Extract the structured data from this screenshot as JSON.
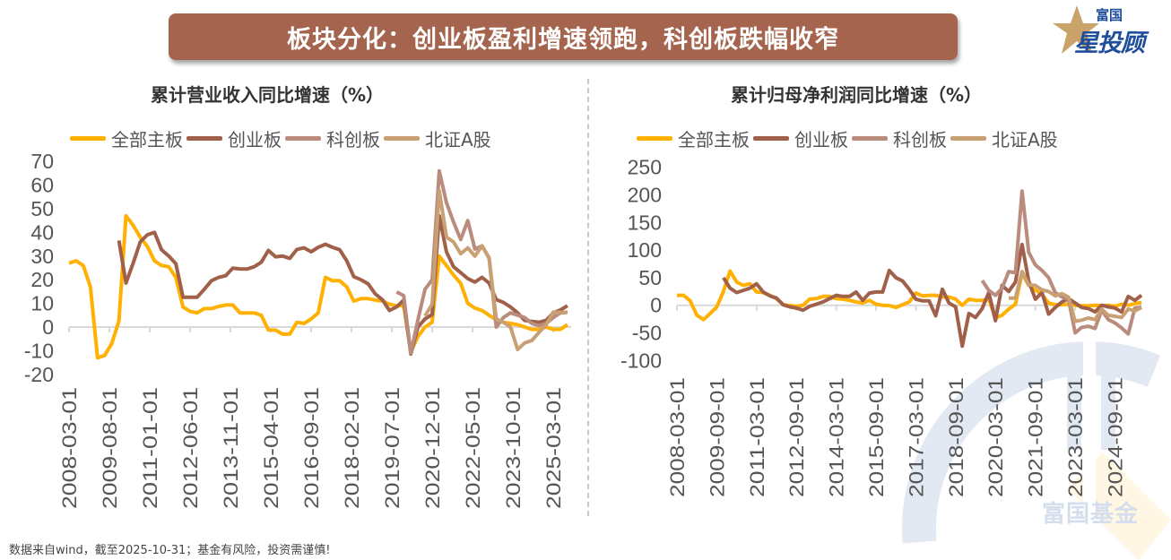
{
  "header": {
    "title": "板块分化：创业板盈利增速领跑，科创板跌幅收窄",
    "banner_color": "#A5644E",
    "logo": {
      "small": "富国",
      "big": "星投顾",
      "icon": "star-icon"
    }
  },
  "watermark": "富国基金",
  "footer": "数据来自wind，截至2025-10-31；基金有风险，投资需谨慎!",
  "chart_data": [
    {
      "type": "line",
      "title": "累计营业收入同比增速（%）",
      "legend_position": "top",
      "grid": false,
      "ylim": [
        -20,
        70
      ],
      "yticks": [
        "-20",
        "-10",
        "0",
        "10",
        "20",
        "30",
        "40",
        "50",
        "60",
        "70"
      ],
      "xticks": [
        "2008-03-01",
        "2009-08-01",
        "2011-01-01",
        "2012-06-01",
        "2013-11-01",
        "2015-04-01",
        "2016-09-01",
        "2018-02-01",
        "2019-07-01",
        "2020-12-01",
        "2022-05-01",
        "2023-10-01",
        "2025-03-01"
      ],
      "x": [
        "2008-03-01",
        "2008-06-01",
        "2008-09-01",
        "2008-12-01",
        "2009-03-01",
        "2009-06-01",
        "2009-09-01",
        "2009-12-01",
        "2010-03-01",
        "2010-06-01",
        "2010-09-01",
        "2010-12-01",
        "2011-03-01",
        "2011-06-01",
        "2011-09-01",
        "2011-12-01",
        "2012-03-01",
        "2012-06-01",
        "2012-09-01",
        "2012-12-01",
        "2013-03-01",
        "2013-06-01",
        "2013-09-01",
        "2013-12-01",
        "2014-03-01",
        "2014-06-01",
        "2014-09-01",
        "2014-12-01",
        "2015-03-01",
        "2015-06-01",
        "2015-09-01",
        "2015-12-01",
        "2016-03-01",
        "2016-06-01",
        "2016-09-01",
        "2016-12-01",
        "2017-03-01",
        "2017-06-01",
        "2017-09-01",
        "2017-12-01",
        "2018-03-01",
        "2018-06-01",
        "2018-09-01",
        "2018-12-01",
        "2019-03-01",
        "2019-06-01",
        "2019-09-01",
        "2019-12-01",
        "2020-03-01",
        "2020-06-01",
        "2020-09-01",
        "2020-12-01",
        "2021-03-01",
        "2021-06-01",
        "2021-09-01",
        "2021-12-01",
        "2022-03-01",
        "2022-06-01",
        "2022-09-01",
        "2022-12-01",
        "2023-03-01",
        "2023-06-01",
        "2023-09-01",
        "2023-12-01",
        "2024-03-01",
        "2024-06-01",
        "2024-09-01",
        "2024-12-01",
        "2025-03-01",
        "2025-06-01",
        "2025-09-01"
      ],
      "series": [
        {
          "name": "全部主板",
          "color": "#FFB000",
          "values": [
            27,
            28,
            26,
            17,
            -13,
            -12,
            -7,
            2.5,
            47,
            43,
            38,
            34,
            28,
            26,
            25.5,
            21,
            8.5,
            6.6,
            6,
            7.8,
            7.8,
            8.7,
            9.3,
            9.3,
            6,
            6,
            6,
            5,
            -1.3,
            -1.3,
            -3,
            -3,
            2,
            1.5,
            3.4,
            6,
            21,
            19.6,
            19.6,
            17,
            11,
            12,
            12,
            11.4,
            11,
            9.7,
            9,
            9,
            -10.5,
            -4,
            0,
            2,
            30,
            26,
            22,
            18.5,
            10,
            8,
            7,
            5,
            3,
            2,
            1.5,
            1,
            0,
            -1,
            -1,
            0,
            -1,
            -1,
            1
          ]
        },
        {
          "name": "创业板",
          "color": "#A0604A",
          "values": [
            null,
            null,
            null,
            null,
            null,
            null,
            null,
            36.6,
            18.6,
            27,
            36,
            39,
            40,
            32.7,
            30,
            26.8,
            12.6,
            12.6,
            12.6,
            16,
            19.6,
            21,
            21.7,
            24.9,
            24.6,
            24.5,
            25.5,
            27.4,
            32.4,
            29.7,
            30,
            29,
            32.8,
            33.5,
            31.8,
            33.7,
            35,
            33.7,
            32.7,
            28,
            21.3,
            20,
            18.3,
            14,
            11.6,
            7,
            8.5,
            11.4,
            -11.4,
            0,
            3.4,
            5.3,
            47,
            31.8,
            25.5,
            23,
            20.5,
            19,
            21,
            18.6,
            11.6,
            10.4,
            8.5,
            6,
            2.8,
            2.4,
            2,
            2.8,
            6,
            7.2,
            9
          ]
        },
        {
          "name": "科创板",
          "color": "#B98C7E",
          "values": [
            null,
            null,
            null,
            null,
            null,
            null,
            null,
            null,
            null,
            null,
            null,
            null,
            null,
            null,
            null,
            null,
            null,
            null,
            null,
            null,
            null,
            null,
            null,
            null,
            null,
            null,
            null,
            null,
            null,
            null,
            null,
            null,
            null,
            null,
            null,
            null,
            null,
            null,
            null,
            null,
            null,
            null,
            null,
            null,
            null,
            null,
            14.8,
            13.3,
            -11,
            3,
            16,
            20,
            66,
            52.6,
            44.4,
            37,
            45,
            33,
            34.3,
            29.3,
            0,
            4,
            6,
            5,
            4,
            1.5,
            0.6,
            1.5,
            4,
            6,
            6.2
          ]
        },
        {
          "name": "北证A股",
          "color": "#C9A074",
          "values": [
            null,
            null,
            null,
            null,
            null,
            null,
            null,
            null,
            null,
            null,
            null,
            null,
            null,
            null,
            null,
            null,
            null,
            null,
            null,
            null,
            null,
            null,
            null,
            null,
            null,
            null,
            null,
            null,
            null,
            null,
            null,
            null,
            null,
            null,
            null,
            null,
            null,
            null,
            null,
            null,
            null,
            null,
            null,
            null,
            null,
            null,
            null,
            null,
            null,
            null,
            4.7,
            9.7,
            57.7,
            38,
            36,
            31,
            33.5,
            30,
            34.3,
            29,
            3.4,
            2,
            0,
            -9.5,
            -6.7,
            -5.7,
            -2.3,
            1,
            6.3,
            6.2,
            6.3
          ]
        }
      ]
    },
    {
      "type": "line",
      "title": "累计归母净利润同比增速（%）",
      "legend_position": "top",
      "grid": false,
      "ylim": [
        -100,
        250
      ],
      "yticks": [
        "-100",
        "-50",
        "0",
        "50",
        "100",
        "150",
        "200",
        "250"
      ],
      "xticks": [
        "2008-03-01",
        "2009-09-01",
        "2011-03-01",
        "2012-09-01",
        "2014-03-01",
        "2015-09-01",
        "2017-03-01",
        "2018-09-01",
        "2020-03-01",
        "2021-09-01",
        "2023-03-01",
        "2024-09-01"
      ],
      "x": [
        "2008-03-01",
        "2008-06-01",
        "2008-09-01",
        "2008-12-01",
        "2009-03-01",
        "2009-06-01",
        "2009-09-01",
        "2009-12-01",
        "2010-03-01",
        "2010-06-01",
        "2010-09-01",
        "2010-12-01",
        "2011-03-01",
        "2011-06-01",
        "2011-09-01",
        "2011-12-01",
        "2012-03-01",
        "2012-06-01",
        "2012-09-01",
        "2012-12-01",
        "2013-03-01",
        "2013-06-01",
        "2013-09-01",
        "2013-12-01",
        "2014-03-01",
        "2014-06-01",
        "2014-09-01",
        "2014-12-01",
        "2015-03-01",
        "2015-06-01",
        "2015-09-01",
        "2015-12-01",
        "2016-03-01",
        "2016-06-01",
        "2016-09-01",
        "2016-12-01",
        "2017-03-01",
        "2017-06-01",
        "2017-09-01",
        "2017-12-01",
        "2018-03-01",
        "2018-06-01",
        "2018-09-01",
        "2018-12-01",
        "2019-03-01",
        "2019-06-01",
        "2019-09-01",
        "2019-12-01",
        "2020-03-01",
        "2020-06-01",
        "2020-09-01",
        "2020-12-01",
        "2021-03-01",
        "2021-06-01",
        "2021-09-01",
        "2021-12-01",
        "2022-03-01",
        "2022-06-01",
        "2022-09-01",
        "2022-12-01",
        "2023-03-01",
        "2023-06-01",
        "2023-09-01",
        "2023-12-01",
        "2024-03-01",
        "2024-06-01",
        "2024-09-01",
        "2024-12-01",
        "2025-03-01",
        "2025-06-01",
        "2025-09-01"
      ],
      "series": [
        {
          "name": "全部主板",
          "color": "#FFB000",
          "values": [
            18,
            18,
            8,
            -18,
            -26,
            -15,
            -3,
            25,
            62,
            42,
            36,
            39,
            24,
            23,
            18,
            12,
            1,
            -0.5,
            -2,
            0,
            11,
            12,
            16,
            16,
            12,
            11,
            9,
            6,
            4,
            9,
            2,
            0,
            -0.5,
            -4,
            1,
            6,
            22,
            17,
            18,
            18,
            15,
            15,
            11,
            0,
            11,
            9,
            9,
            11,
            -23,
            -18,
            -7,
            2,
            58,
            36,
            28,
            20,
            4,
            1,
            1,
            2,
            0,
            -1,
            -1,
            0,
            -1,
            0,
            -2,
            2,
            0,
            3,
            5
          ]
        },
        {
          "name": "创业板",
          "color": "#A0604A",
          "values": [
            null,
            null,
            null,
            null,
            null,
            null,
            null,
            50,
            31,
            23,
            27,
            31,
            39,
            24,
            17,
            13,
            1,
            -3,
            -5,
            -9,
            -2,
            2,
            6,
            12,
            18,
            16,
            16,
            24,
            9,
            22,
            24,
            24,
            63,
            50,
            44,
            29,
            11,
            8,
            8,
            -19,
            29,
            4,
            -3,
            -74,
            -15,
            -22,
            -6,
            23,
            -28,
            36,
            25,
            42,
            110,
            44,
            11,
            23,
            -16,
            -4,
            6,
            12,
            4,
            -4,
            -6,
            -12,
            0,
            -3,
            -5,
            -12,
            16,
            9,
            18
          ]
        },
        {
          "name": "科创板",
          "color": "#B98C7E",
          "values": [
            null,
            null,
            null,
            null,
            null,
            null,
            null,
            null,
            null,
            null,
            null,
            null,
            null,
            null,
            null,
            null,
            null,
            null,
            null,
            null,
            null,
            null,
            null,
            null,
            null,
            null,
            null,
            null,
            null,
            null,
            null,
            null,
            null,
            null,
            null,
            null,
            null,
            null,
            null,
            null,
            null,
            null,
            null,
            null,
            null,
            null,
            45,
            27,
            18,
            31,
            61,
            59,
            207,
            96,
            73,
            63,
            50,
            23,
            15,
            11,
            -50,
            -40,
            -38,
            -42,
            -9,
            -26,
            -32,
            -41,
            -52,
            -5,
            -3
          ]
        },
        {
          "name": "北证A股",
          "color": "#C9A074",
          "values": [
            null,
            null,
            null,
            null,
            null,
            null,
            null,
            null,
            null,
            null,
            null,
            null,
            null,
            null,
            null,
            null,
            null,
            null,
            null,
            null,
            null,
            null,
            null,
            null,
            null,
            null,
            null,
            null,
            null,
            null,
            null,
            null,
            null,
            null,
            null,
            null,
            null,
            null,
            null,
            null,
            null,
            null,
            null,
            null,
            null,
            null,
            null,
            null,
            null,
            null,
            13,
            13,
            61,
            37,
            36,
            28,
            25,
            17,
            21,
            15,
            -29,
            -27,
            -23,
            -26,
            -7,
            -18,
            -20,
            -22,
            -7,
            -10,
            -4
          ]
        }
      ]
    }
  ]
}
